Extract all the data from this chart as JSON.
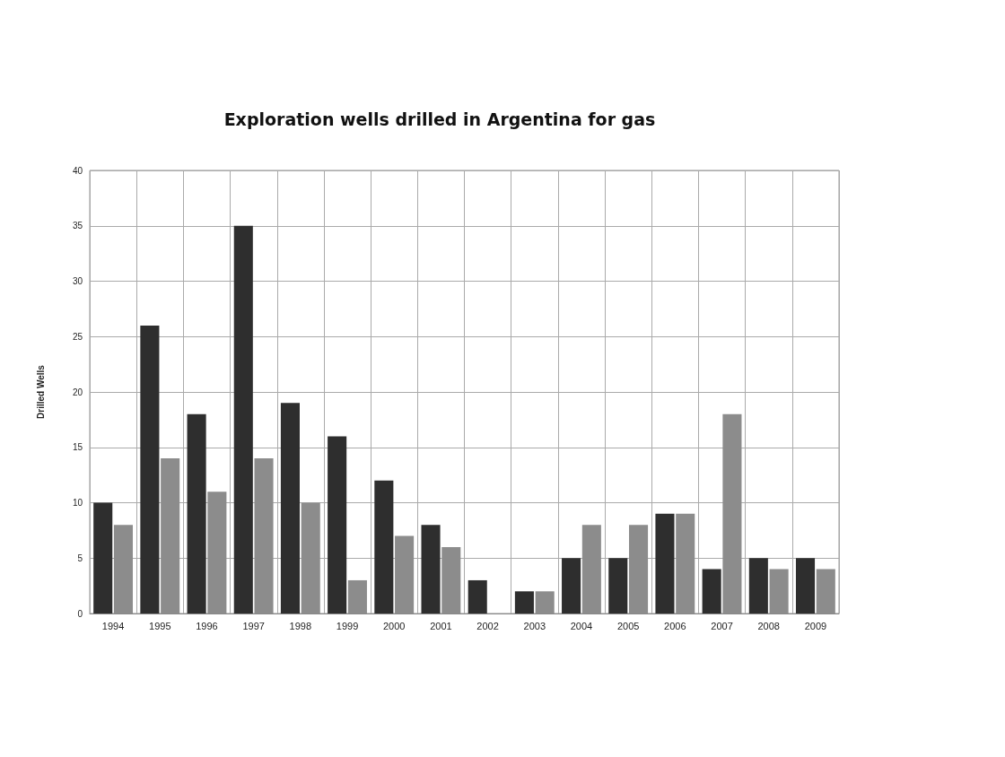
{
  "chart_data": {
    "type": "bar",
    "title": "Exploration wells drilled in Argentina for gas",
    "ylabel": "Drilled Wells",
    "categories": [
      "1994",
      "1995",
      "1996",
      "1997",
      "1998",
      "1999",
      "2000",
      "2001",
      "2002",
      "2003",
      "2004",
      "2005",
      "2006",
      "2007",
      "2008",
      "2009"
    ],
    "series": [
      {
        "color": "#2e2e2e",
        "values": [
          10,
          26,
          18,
          35,
          19,
          16,
          12,
          8,
          3,
          2,
          5,
          5,
          9,
          4,
          5,
          5
        ]
      },
      {
        "color": "#8c8c8c",
        "values": [
          8,
          14,
          11,
          14,
          10,
          3,
          7,
          6,
          0,
          2,
          8,
          8,
          9,
          18,
          4,
          4
        ]
      }
    ],
    "ylim": [
      0,
      40
    ],
    "yticks": [
      0,
      5,
      10,
      15,
      20,
      25,
      30,
      35,
      40
    ],
    "grid": true
  }
}
